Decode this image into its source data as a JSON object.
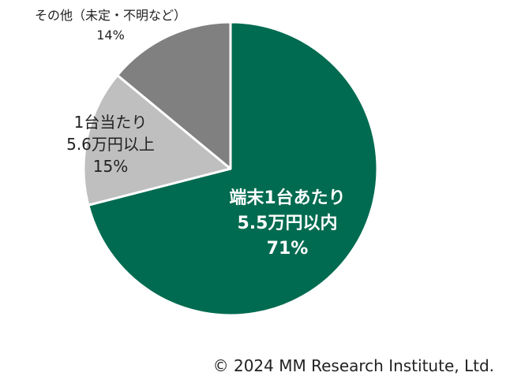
{
  "chart_data": {
    "type": "pie",
    "slices": [
      {
        "label_lines": [
          "端末1台あたり",
          "5.5万円以内",
          "71%"
        ],
        "value": 71,
        "color": "#006B50"
      },
      {
        "label_lines": [
          "1台当たり",
          "5.6万円以上",
          "15%"
        ],
        "value": 15,
        "color": "#BFBFBF"
      },
      {
        "label_lines": [
          "その他（未定・不明など）",
          "14%"
        ],
        "value": 14,
        "color": "#808080"
      }
    ],
    "start": "12 o'clock",
    "direction": "clockwise"
  },
  "credit": "© 2024 MM Research Institute, Ltd."
}
